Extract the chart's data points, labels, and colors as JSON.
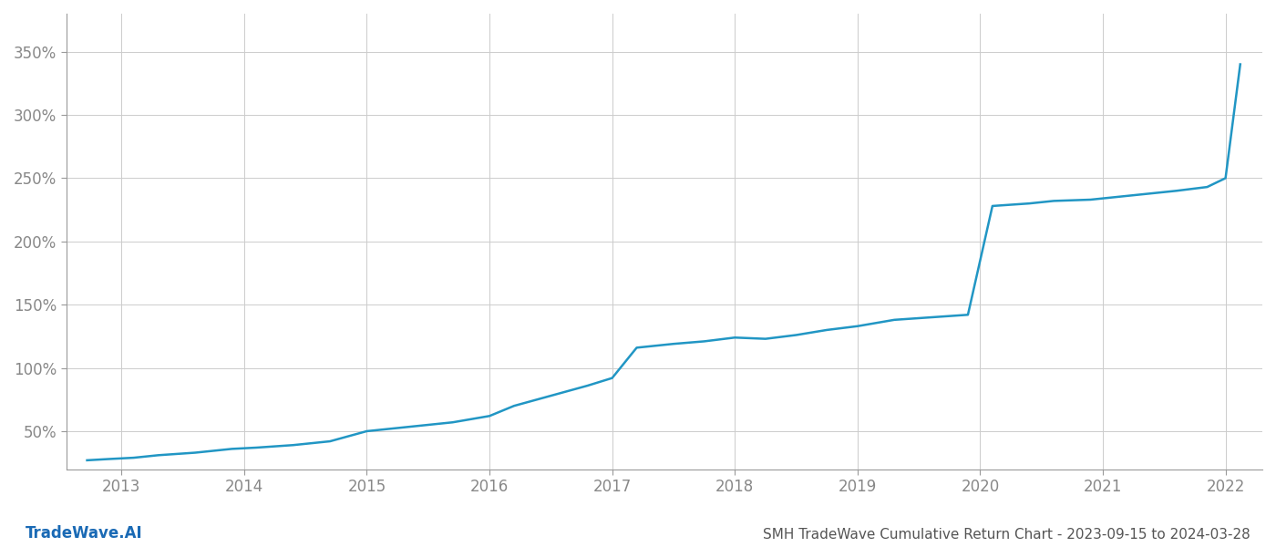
{
  "title": "SMH TradeWave Cumulative Return Chart - 2023-09-15 to 2024-03-28",
  "watermark": "TradeWave.AI",
  "line_color": "#2196c4",
  "background_color": "#ffffff",
  "grid_color": "#cccccc",
  "x_years": [
    2013,
    2014,
    2015,
    2016,
    2017,
    2018,
    2019,
    2020,
    2021,
    2022
  ],
  "x_values": [
    2012.72,
    2012.9,
    2013.1,
    2013.3,
    2013.6,
    2013.9,
    2014.1,
    2014.4,
    2014.7,
    2015.0,
    2015.2,
    2015.4,
    2015.7,
    2016.0,
    2016.2,
    2016.5,
    2016.8,
    2017.0,
    2017.2,
    2017.5,
    2017.75,
    2018.0,
    2018.25,
    2018.5,
    2018.75,
    2019.0,
    2019.3,
    2019.6,
    2019.9,
    2020.1,
    2020.4,
    2020.6,
    2020.9,
    2021.1,
    2021.3,
    2021.6,
    2021.85,
    2022.0,
    2022.12
  ],
  "y_values": [
    27,
    28,
    29,
    31,
    33,
    36,
    37,
    39,
    42,
    50,
    52,
    54,
    57,
    62,
    70,
    78,
    86,
    92,
    116,
    119,
    121,
    124,
    123,
    126,
    130,
    133,
    138,
    140,
    142,
    228,
    230,
    232,
    233,
    235,
    237,
    240,
    243,
    250,
    340
  ],
  "ylim": [
    20,
    380
  ],
  "xlim": [
    2012.55,
    2022.3
  ],
  "yticks": [
    50,
    100,
    150,
    200,
    250,
    300,
    350
  ],
  "ytick_labels": [
    "50%",
    "100%",
    "150%",
    "200%",
    "250%",
    "300%",
    "350%"
  ],
  "title_fontsize": 11,
  "tick_label_color": "#888888",
  "tick_fontsize": 12,
  "watermark_fontsize": 12,
  "watermark_color": "#1a6ab5",
  "title_color": "#555555",
  "line_width": 1.8,
  "spine_color": "#999999"
}
